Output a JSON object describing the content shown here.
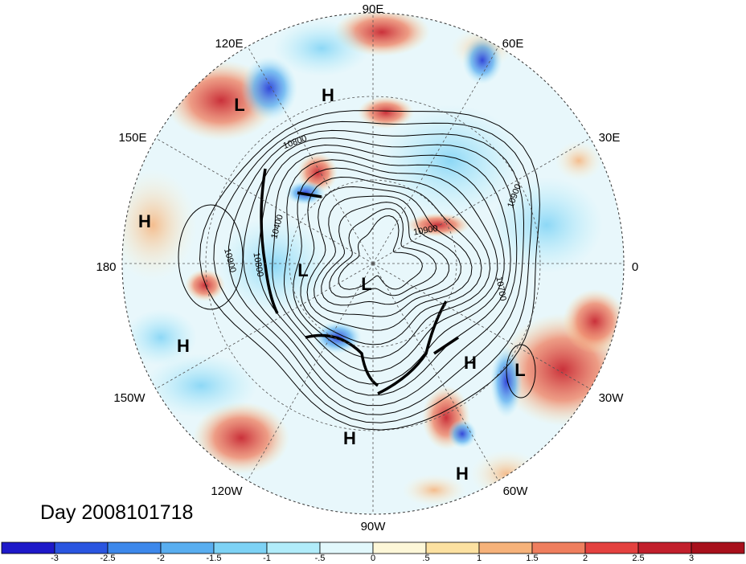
{
  "map": {
    "projection": "north-polar-stereographic",
    "day_label": "Day 2008101718",
    "longitude_labels": [
      "90E",
      "60E",
      "30E",
      "0",
      "30W",
      "60W",
      "90W",
      "120W",
      "150W",
      "180",
      "150E",
      "120E"
    ],
    "pressure_centers": [
      {
        "type": "L",
        "name": "low-east-siberia"
      },
      {
        "type": "H",
        "name": "high-east-siberia"
      },
      {
        "type": "H",
        "name": "high-north-pacific"
      },
      {
        "type": "L",
        "name": "low-alaska"
      },
      {
        "type": "L",
        "name": "low-pole"
      },
      {
        "type": "H",
        "name": "high-gulf-of-alaska"
      },
      {
        "type": "H",
        "name": "high-atlantic"
      },
      {
        "type": "L",
        "name": "low-east-atlantic"
      },
      {
        "type": "H",
        "name": "high-gulf-mexico"
      },
      {
        "type": "H",
        "name": "high-caribbean"
      }
    ],
    "contour_labels": [
      "10800",
      "10400",
      "10900",
      "10800",
      "10900",
      "10700",
      "10900"
    ],
    "colors": {
      "ocean_land_neutral": "#ffffff",
      "strong_negative": "#1a1ac8",
      "strong_positive": "#a8101c"
    }
  },
  "colorbar": {
    "tick_labels": [
      "-3",
      "-2.5",
      "-2",
      "-1.5",
      "-1",
      "-.5",
      "0",
      ".5",
      "1",
      "1.5",
      "2",
      "2.5",
      "3"
    ],
    "colors": [
      "#1e19c9",
      "#2a55e0",
      "#3d88eb",
      "#59aef0",
      "#7dd2f5",
      "#b1ecfa",
      "#e2f8fc",
      "#fdf7d8",
      "#fce1a1",
      "#f6b27a",
      "#ef7e5e",
      "#e4413f",
      "#c21f2c",
      "#a8101c"
    ]
  }
}
